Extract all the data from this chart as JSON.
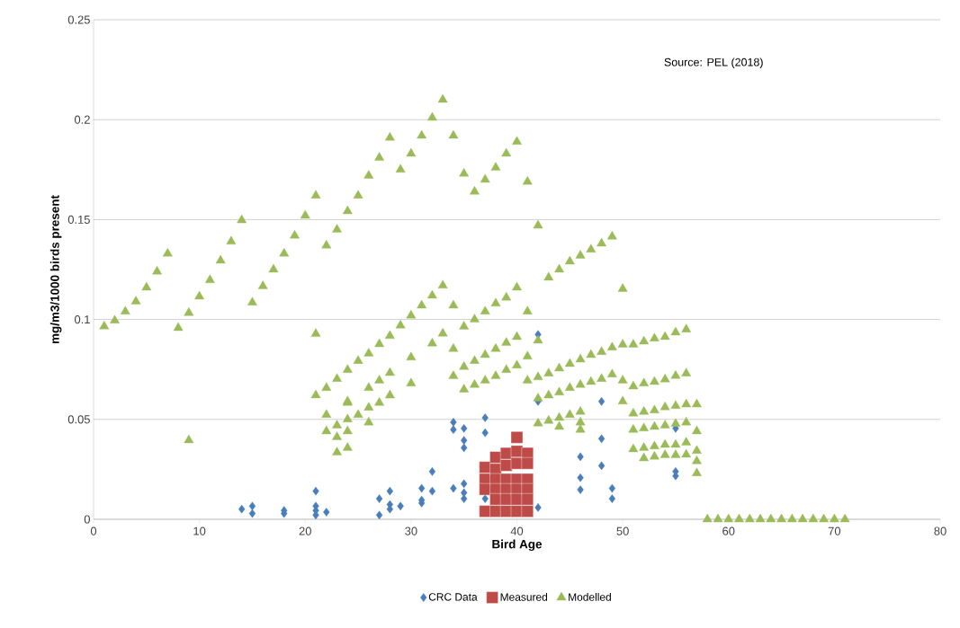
{
  "chart_data": {
    "type": "scatter",
    "xlabel": "Bird Age",
    "ylabel": "mg/m3/1000 birds present",
    "annotations": [
      "Source: PEL (2018)"
    ],
    "xlim": [
      0,
      80
    ],
    "xticks": [
      0,
      10,
      20,
      30,
      40,
      50,
      60,
      70,
      80
    ],
    "ylim": [
      0,
      0.25
    ],
    "yticks": [
      0,
      0.05,
      0.1,
      0.15,
      0.2,
      0.25
    ],
    "grid": "y",
    "legend": "bottom",
    "series": [
      {
        "name": "CRC Data",
        "color": "#4a7ebb",
        "marker": "diamond",
        "x": [
          14,
          15,
          15,
          18,
          18,
          21,
          21,
          21,
          21,
          22,
          27,
          27,
          28,
          28,
          28,
          29,
          31,
          31,
          31,
          32,
          32,
          34,
          34,
          34,
          35,
          35,
          35,
          35,
          35,
          35,
          37,
          37,
          37,
          42,
          42,
          42,
          46,
          46,
          46,
          48,
          48,
          48,
          49,
          49,
          55,
          55,
          55
        ],
        "values": [
          0.0051,
          0.0066,
          0.0029,
          0.0044,
          0.0029,
          0.0141,
          0.0066,
          0.0044,
          0.0021,
          0.0036,
          0.0103,
          0.0021,
          0.0141,
          0.0074,
          0.0051,
          0.0066,
          0.0155,
          0.0096,
          0.0081,
          0.0239,
          0.0141,
          0.0486,
          0.0449,
          0.0155,
          0.0455,
          0.0395,
          0.0358,
          0.0178,
          0.0133,
          0.0103,
          0.0508,
          0.0433,
          0.0103,
          0.0925,
          0.059,
          0.0059,
          0.0313,
          0.0208,
          0.0148,
          0.059,
          0.0403,
          0.0268,
          0.0155,
          0.0103,
          0.0455,
          0.0239,
          0.0217
        ]
      },
      {
        "name": "Measured",
        "color": "#be4b48",
        "marker": "square",
        "x": [
          37,
          37,
          37,
          37,
          38,
          38,
          38,
          38,
          38,
          38,
          39,
          39,
          39,
          39,
          39,
          39,
          40,
          40,
          40,
          40,
          40,
          40,
          40,
          41,
          41,
          41,
          41,
          41,
          41
        ],
        "values": [
          0.026,
          0.02,
          0.015,
          0.004,
          0.031,
          0.025,
          0.02,
          0.015,
          0.01,
          0.004,
          0.033,
          0.027,
          0.02,
          0.015,
          0.01,
          0.004,
          0.041,
          0.034,
          0.028,
          0.02,
          0.015,
          0.01,
          0.004,
          0.033,
          0.028,
          0.02,
          0.015,
          0.01,
          0.004
        ]
      },
      {
        "name": "Modelled",
        "color": "#9bbb59",
        "marker": "triangle",
        "x": [
          1,
          2,
          3,
          4,
          5,
          6,
          7,
          8,
          9,
          10,
          11,
          12,
          13,
          14,
          15,
          16,
          17,
          18,
          19,
          20,
          21,
          22,
          23,
          24,
          25,
          26,
          27,
          28,
          29,
          30,
          31,
          32,
          33,
          34,
          35,
          36,
          37,
          38,
          39,
          40,
          41,
          42,
          9,
          21,
          21,
          22,
          23,
          24,
          25,
          26,
          27,
          28,
          29,
          30,
          31,
          32,
          33,
          34,
          35,
          36,
          37,
          38,
          39,
          40,
          41,
          42,
          43,
          44,
          45,
          46,
          47,
          48,
          49,
          50,
          24,
          26,
          27,
          28,
          30,
          32,
          33,
          34,
          35,
          36,
          37,
          38,
          39,
          40,
          41,
          24,
          25,
          26,
          26,
          27,
          28,
          30,
          34,
          35,
          36,
          37,
          38,
          39,
          40,
          41,
          22,
          22,
          23,
          23,
          23,
          24,
          24,
          24,
          42,
          43,
          44,
          45,
          46,
          47,
          48,
          49,
          50,
          51,
          52,
          53,
          54,
          55,
          56,
          42,
          43,
          44,
          45,
          46,
          47,
          48,
          49,
          50,
          51,
          52,
          53,
          54,
          55,
          56,
          42,
          43,
          44,
          45,
          46,
          50,
          51,
          52,
          53,
          54,
          55,
          56,
          57,
          44,
          46,
          46,
          51,
          52,
          53,
          54,
          55,
          56,
          57,
          51,
          52,
          53,
          54,
          55,
          56,
          57,
          52,
          53,
          54,
          55,
          56,
          57,
          57,
          58,
          59,
          60,
          61,
          62,
          63,
          64,
          65,
          66,
          67,
          68,
          69,
          70,
          71
        ],
        "values": [
          0.0966,
          0.0995,
          0.104,
          0.109,
          0.116,
          0.124,
          0.133,
          0.0958,
          0.1033,
          0.1115,
          0.1197,
          0.1295,
          0.139,
          0.1497,
          0.1085,
          0.1167,
          0.125,
          0.133,
          0.142,
          0.152,
          0.162,
          0.137,
          0.145,
          0.1542,
          0.162,
          0.172,
          0.181,
          0.191,
          0.175,
          0.183,
          0.192,
          0.201,
          0.21,
          0.192,
          0.173,
          0.164,
          0.17,
          0.176,
          0.183,
          0.189,
          0.169,
          0.147,
          0.0396,
          0.0928,
          0.0621,
          0.0658,
          0.0703,
          0.0748,
          0.0793,
          0.083,
          0.0877,
          0.0918,
          0.097,
          0.102,
          0.107,
          0.112,
          0.117,
          0.107,
          0.0965,
          0.1,
          0.104,
          0.108,
          0.111,
          0.116,
          0.104,
          0.0895,
          0.121,
          0.125,
          0.129,
          0.132,
          0.135,
          0.138,
          0.1415,
          0.1153,
          0.0583,
          0.0658,
          0.0695,
          0.0733,
          0.081,
          0.088,
          0.093,
          0.0853,
          0.0763,
          0.0793,
          0.0823,
          0.0853,
          0.0883,
          0.0913,
          0.0815,
          0.05,
          0.0523,
          0.0559,
          0.0485,
          0.0583,
          0.062,
          0.068,
          0.0717,
          0.065,
          0.0673,
          0.0695,
          0.0717,
          0.0748,
          0.077,
          0.0695,
          0.0523,
          0.0441,
          0.047,
          0.0411,
          0.0335,
          0.0441,
          0.0358,
          0.059,
          0.0711,
          0.073,
          0.0755,
          0.0778,
          0.08,
          0.0823,
          0.0838,
          0.086,
          0.0875,
          0.0875,
          0.089,
          0.0905,
          0.0913,
          0.0935,
          0.095,
          0.0605,
          0.062,
          0.0635,
          0.0658,
          0.0673,
          0.0688,
          0.0703,
          0.0725,
          0.0695,
          0.0665,
          0.068,
          0.0688,
          0.07,
          0.0718,
          0.073,
          0.048,
          0.0493,
          0.0508,
          0.0523,
          0.0538,
          0.059,
          0.053,
          0.0538,
          0.0545,
          0.0561,
          0.0568,
          0.0575,
          0.0575,
          0.0463,
          0.0485,
          0.0448,
          0.0448,
          0.0455,
          0.0463,
          0.047,
          0.0478,
          0.0485,
          0.0441,
          0.0351,
          0.0358,
          0.0365,
          0.0373,
          0.0373,
          0.0384,
          0.0343,
          0.0306,
          0.0314,
          0.0321,
          0.0321,
          0.0324,
          0.0291,
          0.0231,
          0,
          0,
          0,
          0,
          0,
          0,
          0,
          0,
          0,
          0,
          0,
          0,
          0,
          0
        ]
      }
    ]
  }
}
